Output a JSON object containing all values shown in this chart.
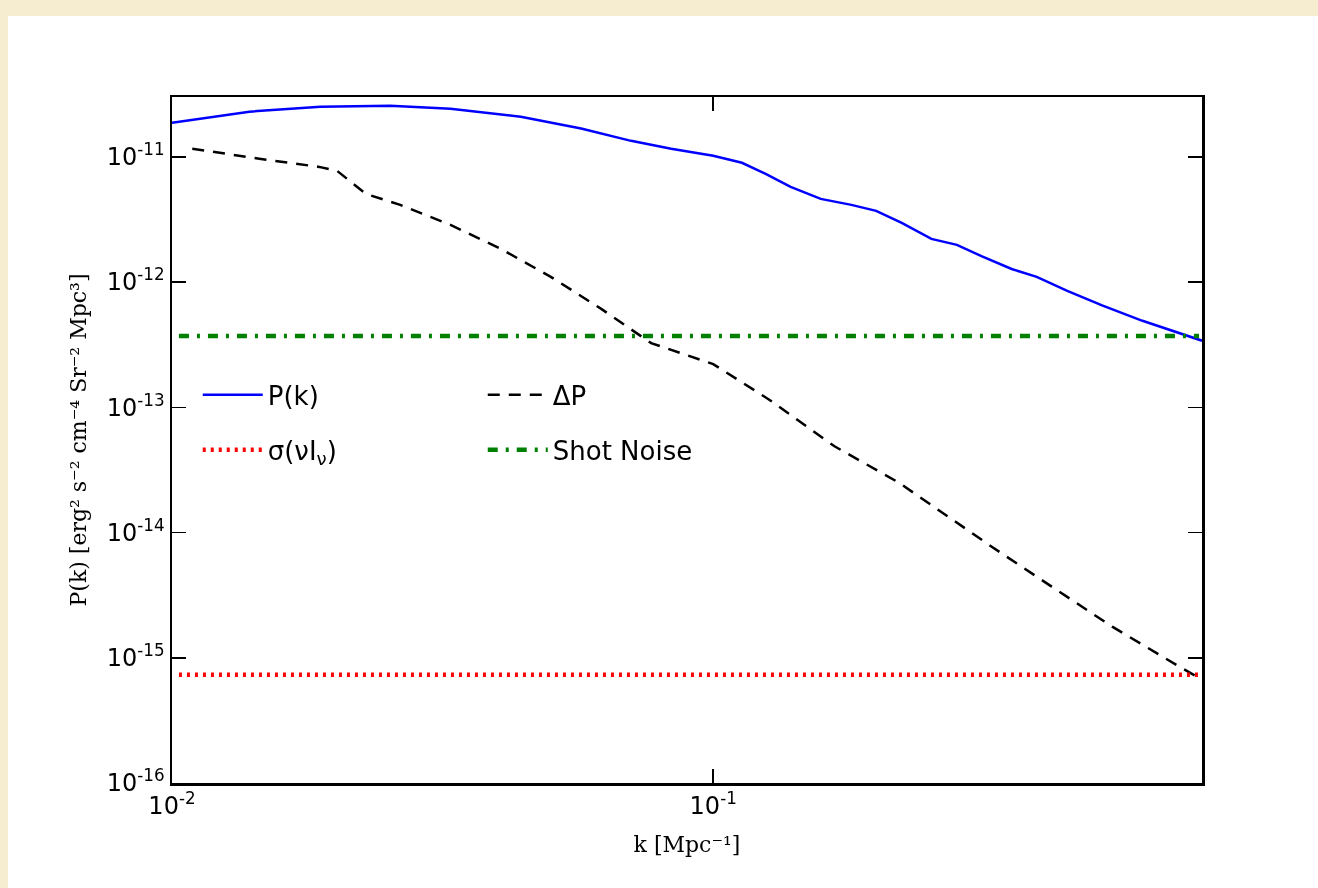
{
  "chart_data": {
    "type": "line",
    "xlabel": "k [Mpc⁻¹]",
    "ylabel": "P(k) [erg² s⁻² cm⁻⁴ Sr⁻² Mpc³]",
    "log": "xy",
    "grid": false,
    "legend": "left",
    "xlim": [
      0.01,
      0.8
    ],
    "xticks": [
      {
        "value": 0.01,
        "label": "10$^{-2}$"
      },
      {
        "value": 0.1,
        "label": "10$^{-1}$"
      }
    ],
    "ylim": [
      1e-16,
      3e-11
    ],
    "yticks": [
      {
        "value": 1e-16,
        "label": "10$^{-16}$"
      },
      {
        "value": 1e-15,
        "label": "10$^{-15}$"
      },
      {
        "value": 1e-14,
        "label": "10$^{-14}$"
      },
      {
        "value": 1e-13,
        "label": "10$^{-13}$"
      },
      {
        "value": 1e-12,
        "label": "10$^{-12}$"
      },
      {
        "value": 1e-11,
        "label": "10$^{-11}$"
      }
    ],
    "series": [
      {
        "name": "P(k)",
        "color": "#0000ff",
        "line_style": "solid",
        "x": [
          0.01,
          0.0139,
          0.0188,
          0.0253,
          0.0327,
          0.0441,
          0.057,
          0.0705,
          0.0836,
          0.1,
          0.113,
          0.125,
          0.139,
          0.158,
          0.18,
          0.2,
          0.223,
          0.253,
          0.282,
          0.313,
          0.356,
          0.396,
          0.451,
          0.523,
          0.621,
          0.8
        ],
        "values": [
          1.87e-11,
          2.29e-11,
          2.51e-11,
          2.56e-11,
          2.42e-11,
          2.09e-11,
          1.68e-11,
          1.34e-11,
          1.16e-11,
          1.02e-11,
          8.95e-12,
          7.31e-12,
          5.75e-12,
          4.61e-12,
          4.13e-12,
          3.7e-12,
          2.96e-12,
          2.21e-12,
          1.98e-12,
          1.61e-12,
          1.27e-12,
          1.1e-12,
          8.5e-13,
          6.5e-13,
          4.9e-13,
          3.4e-13
        ]
      },
      {
        "name": "ΔP",
        "color": "#000000",
        "line_style": "dashed",
        "x": [
          0.0109,
          0.0146,
          0.0187,
          0.0202,
          0.0228,
          0.0264,
          0.0327,
          0.0405,
          0.0501,
          0.0621,
          0.0768,
          0.1,
          0.1265,
          0.1675,
          0.22,
          0.327,
          0.422,
          0.546,
          0.726,
          0.8
        ],
        "values": [
          1.16e-11,
          9.6e-12,
          8.3e-12,
          7.7e-12,
          5.06e-12,
          4.13e-12,
          2.86e-12,
          1.84e-12,
          1.1e-12,
          6.1e-13,
          3.25e-13,
          2.21e-13,
          1.16e-13,
          4.88e-14,
          2.51e-14,
          7.7e-15,
          3.7e-15,
          1.77e-15,
          8.5e-16,
          6.7e-16
        ]
      },
      {
        "name": "σ(νI$_{ν}$)",
        "color": "#ff0000",
        "line_style": "dotted",
        "x": [
          0.0103,
          0.79
        ],
        "values": [
          7.3e-16,
          7.3e-16
        ]
      },
      {
        "name": "Shot Noise",
        "color": "#008000",
        "line_style": "dashdot",
        "x": [
          0.0103,
          0.79
        ],
        "values": [
          3.7e-13,
          3.7e-13
        ]
      }
    ]
  }
}
